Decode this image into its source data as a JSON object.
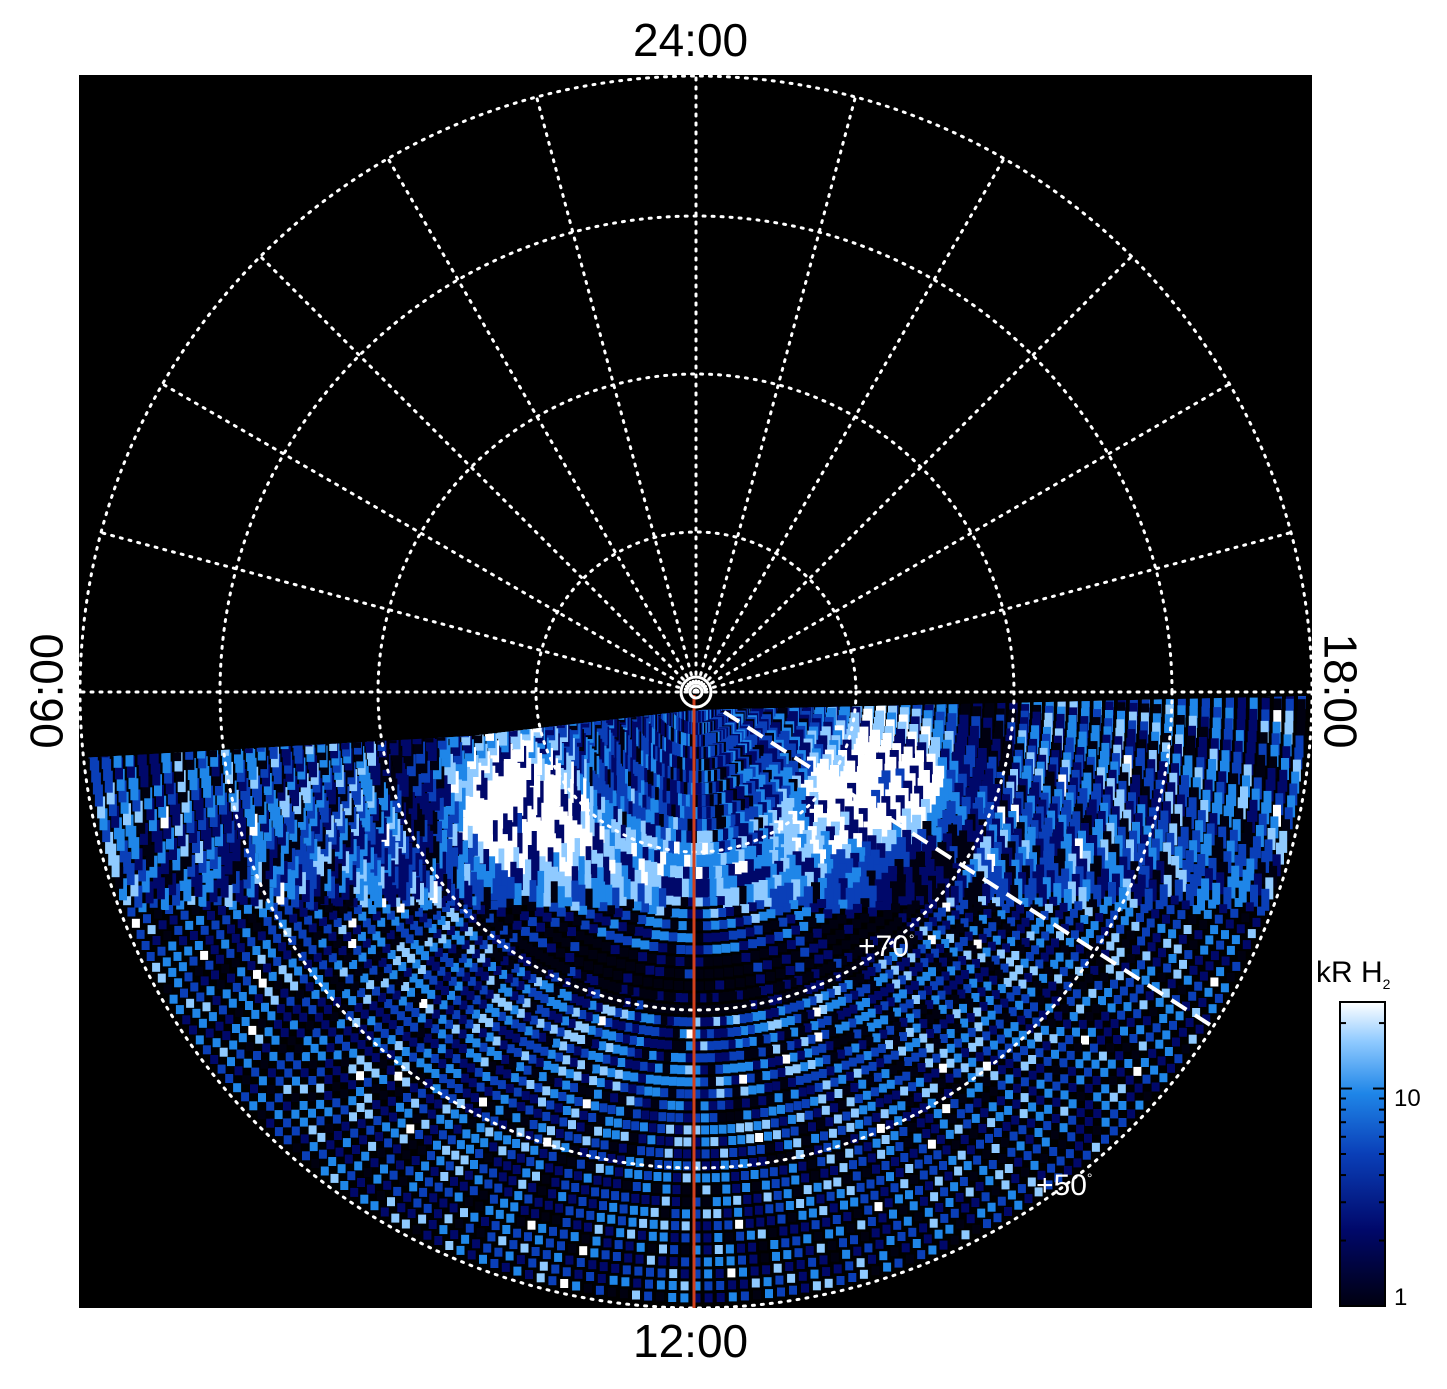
{
  "lt_labels": {
    "top": "24:00",
    "bottom": "12:00",
    "left": "06:00",
    "right": "18:00"
  },
  "lat_labels": {
    "inner": "+70",
    "outer": "+50",
    "degree": "°"
  },
  "colorbar": {
    "title_main": "kR H",
    "title_sub": "2",
    "ticks": [
      "10",
      "1"
    ],
    "scale": "log",
    "range": [
      1,
      25
    ]
  },
  "colors": {
    "background": "#000000",
    "grid": "#ffffff",
    "meridian_line": "#d2401c",
    "colormap": [
      "#000010",
      "#00086a",
      "#0a3fb8",
      "#1f86e8",
      "#8fcaff",
      "#ffffff"
    ]
  }
}
